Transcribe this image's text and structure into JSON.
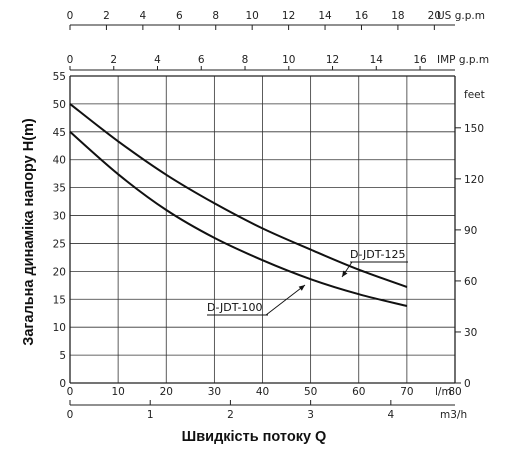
{
  "chart_data": {
    "type": "line",
    "title": "",
    "xlabel": "Швидкість потоку Q",
    "ylabel": "Загальна динаміка напору H(m)",
    "x_unit": "l/m",
    "xlim": [
      0,
      80
    ],
    "ylim": [
      0,
      55
    ],
    "x_ticks": [
      0,
      10,
      20,
      30,
      40,
      50,
      60,
      70,
      80
    ],
    "y_ticks": [
      0,
      5,
      10,
      15,
      20,
      25,
      30,
      35,
      40,
      45,
      50,
      55
    ],
    "secondary_axes": {
      "us_gpm": {
        "unit": "US g.p.m",
        "ticks": [
          0,
          2,
          4,
          6,
          8,
          10,
          12,
          14,
          16,
          18,
          20
        ],
        "max": 21.134
      },
      "imp_gpm": {
        "unit": "IMP g.p.m",
        "ticks": [
          0,
          2,
          4,
          6,
          8,
          10,
          12,
          14,
          16
        ],
        "max": 17.598
      },
      "m3h": {
        "unit": "m3/h",
        "ticks": [
          0,
          1,
          2,
          3,
          4
        ],
        "max": 4.8
      },
      "feet": {
        "unit": "feet",
        "ticks": [
          0,
          30,
          60,
          90,
          120,
          150
        ],
        "max": 180.45
      }
    },
    "grid": true,
    "series": [
      {
        "name": "D-JDT-125",
        "x": [
          0,
          10,
          20,
          30,
          40,
          50,
          60,
          70
        ],
        "y": [
          50.0,
          43.3,
          37.3,
          32.2,
          27.7,
          23.9,
          20.3,
          17.2
        ]
      },
      {
        "name": "D-JDT-100",
        "x": [
          0,
          10,
          20,
          30,
          40,
          50,
          60,
          70
        ],
        "y": [
          45.0,
          37.4,
          31.0,
          26.0,
          22.0,
          18.6,
          15.9,
          13.8
        ]
      }
    ]
  }
}
